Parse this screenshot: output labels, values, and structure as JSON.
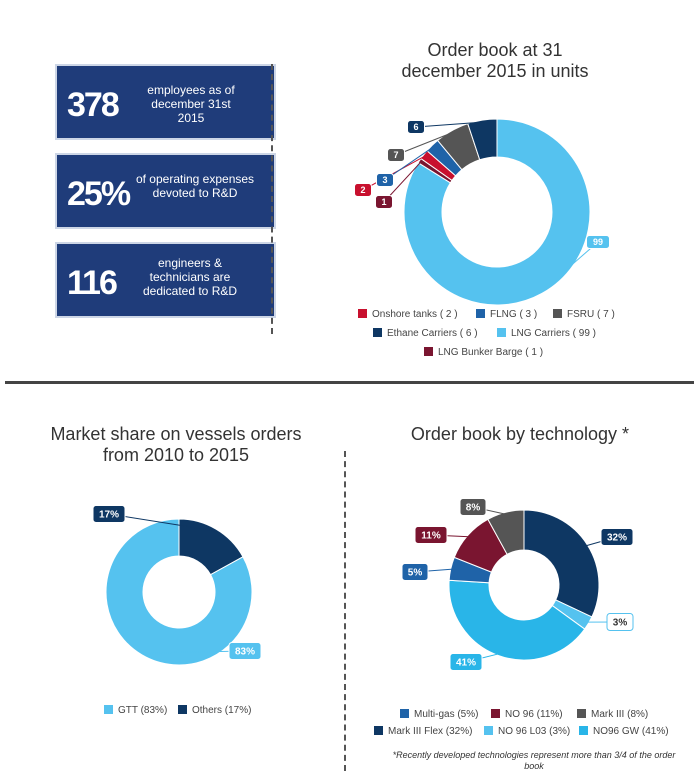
{
  "stats": [
    {
      "number": "378",
      "text": "employees as of december 31st 2015"
    },
    {
      "number": "25%",
      "text": "of operating expenses devoted to R&D"
    },
    {
      "number": "116",
      "text": "engineers & technicians are dedicated to R&D"
    }
  ],
  "colors": {
    "stat_box": "#1f3c7a",
    "onshore": "#c8102e",
    "flng": "#1f63a8",
    "fsru": "#555555",
    "ethane": "#0e3763",
    "lng_carriers": "#55c2ef",
    "bunker": "#7a1530",
    "gtt": "#55c2ef",
    "others": "#0e3763",
    "multigas": "#1f63a8",
    "no96": "#7a1530",
    "mark3": "#555555",
    "mark3flex": "#0e3763",
    "no96l03": "#55c2ef",
    "no96gw": "#29b5e8"
  },
  "chart_data": [
    {
      "type": "pie",
      "title": "Order book at 31 december 2015 in units",
      "donut": true,
      "categories": [
        "Onshore tanks",
        "FLNG",
        "FSRU",
        "Ethane Carriers",
        "LNG Carriers",
        "LNG Bunker Barge"
      ],
      "values": [
        2,
        3,
        7,
        6,
        99,
        1
      ],
      "legend": [
        {
          "label": "Onshore tanks ( 2 )"
        },
        {
          "label": "FLNG ( 3 )"
        },
        {
          "label": "FSRU ( 7 )"
        },
        {
          "label": "Ethane Carriers ( 6 )"
        },
        {
          "label": "LNG Carriers ( 99 )"
        },
        {
          "label": "LNG Bunker Barge ( 1 )"
        }
      ],
      "data_labels": [
        "2",
        "3",
        "7",
        "6",
        "99",
        "1"
      ]
    },
    {
      "type": "pie",
      "title": "Market share on vessels orders from 2010 to 2015",
      "donut": true,
      "categories": [
        "GTT",
        "Others"
      ],
      "values": [
        83,
        17
      ],
      "legend": [
        {
          "label": "GTT (83%)"
        },
        {
          "label": "Others (17%)"
        }
      ],
      "data_labels": [
        "83%",
        "17%"
      ]
    },
    {
      "type": "pie",
      "title": "Order book by technology *",
      "donut": true,
      "categories": [
        "Multi-gas",
        "NO 96",
        "Mark III",
        "Mark III Flex",
        "NO 96 L03",
        "NO96 GW"
      ],
      "values": [
        5,
        11,
        8,
        32,
        3,
        41
      ],
      "legend": [
        {
          "label": "Multi-gas (5%)"
        },
        {
          "label": "NO 96 (11%)"
        },
        {
          "label": "Mark III (8%)"
        },
        {
          "label": "Mark III Flex (32%)"
        },
        {
          "label": "NO 96 L03 (3%)"
        },
        {
          "label": "NO96 GW (41%)"
        }
      ],
      "data_labels": [
        "5%",
        "11%",
        "8%",
        "32%",
        "3%",
        "41%"
      ],
      "footnote": "*Recently developed technologies represent more than 3/4 of the order book"
    }
  ]
}
